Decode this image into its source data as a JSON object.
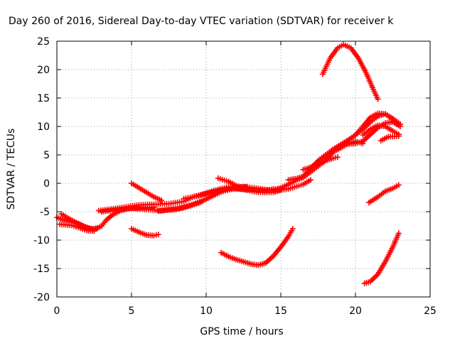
{
  "chart_data": {
    "type": "scatter",
    "title": "Day 260 of 2016, Sidereal Day-to-day VTEC variation (SDTVAR) for receiver k",
    "xlabel": "GPS time / hours",
    "ylabel": "SDTVAR / TECUs",
    "xlim": [
      0,
      25
    ],
    "ylim": [
      -20,
      25
    ],
    "xticks": [
      0,
      5,
      10,
      15,
      20,
      25
    ],
    "yticks": [
      -20,
      -15,
      -10,
      -5,
      0,
      5,
      10,
      15,
      20,
      25
    ],
    "grid": true,
    "legend": "none",
    "marker": "plus",
    "color": "#ff0000",
    "series": [
      {
        "points": [
          [
            0.0,
            -6.0
          ],
          [
            0.5,
            -6.5
          ],
          [
            1.0,
            -6.8
          ],
          [
            1.5,
            -7.2
          ],
          [
            2.0,
            -7.8
          ],
          [
            2.5,
            -8.2
          ],
          [
            3.0,
            -7.5
          ],
          [
            3.3,
            -6.5
          ],
          [
            3.7,
            -5.6
          ],
          [
            4.2,
            -4.9
          ],
          [
            4.8,
            -4.4
          ],
          [
            5.5,
            -4.3
          ],
          [
            6.5,
            -4.2
          ]
        ]
      },
      {
        "points": [
          [
            0.3,
            -5.4
          ],
          [
            0.8,
            -6.2
          ],
          [
            1.3,
            -6.9
          ],
          [
            1.8,
            -7.6
          ],
          [
            2.3,
            -8.0
          ],
          [
            2.7,
            -7.9
          ]
        ]
      },
      {
        "points": [
          [
            0.2,
            -7.2
          ],
          [
            1.0,
            -7.4
          ],
          [
            2.0,
            -8.3
          ],
          [
            2.5,
            -8.4
          ]
        ]
      },
      {
        "points": [
          [
            2.8,
            -4.8
          ],
          [
            3.5,
            -4.6
          ],
          [
            4.5,
            -4.2
          ],
          [
            5.5,
            -3.8
          ],
          [
            6.5,
            -3.7
          ],
          [
            7.5,
            -3.6
          ],
          [
            8.5,
            -3.2
          ],
          [
            9.2,
            -2.3
          ],
          [
            10.0,
            -1.8
          ],
          [
            11.0,
            -1.2
          ],
          [
            12.0,
            -1.0
          ],
          [
            13.0,
            -1.1
          ],
          [
            14.0,
            -1.3
          ],
          [
            14.5,
            -1.0
          ]
        ]
      },
      {
        "points": [
          [
            3.0,
            -5.0
          ],
          [
            4.0,
            -4.7
          ],
          [
            5.0,
            -4.4
          ],
          [
            6.0,
            -4.6
          ],
          [
            7.0,
            -4.8
          ],
          [
            8.0,
            -4.6
          ],
          [
            9.0,
            -3.8
          ],
          [
            10.0,
            -2.8
          ],
          [
            11.0,
            -1.5
          ],
          [
            12.0,
            -0.8
          ],
          [
            12.7,
            -0.6
          ]
        ]
      },
      {
        "points": [
          [
            5.0,
            0.0
          ],
          [
            5.5,
            -0.8
          ],
          [
            6.0,
            -1.6
          ],
          [
            6.5,
            -2.4
          ],
          [
            7.0,
            -3.0
          ]
        ]
      },
      {
        "points": [
          [
            5.0,
            -8.0
          ],
          [
            5.5,
            -8.6
          ],
          [
            6.0,
            -9.1
          ],
          [
            6.5,
            -9.2
          ],
          [
            6.8,
            -9.0
          ]
        ]
      },
      {
        "points": [
          [
            6.8,
            -4.9
          ],
          [
            7.5,
            -4.6
          ],
          [
            8.5,
            -4.3
          ],
          [
            9.5,
            -3.5
          ],
          [
            10.5,
            -2.0
          ],
          [
            11.5,
            -0.9
          ],
          [
            12.5,
            -0.6
          ],
          [
            13.5,
            -0.9
          ],
          [
            14.5,
            -1.3
          ],
          [
            15.5,
            -1.0
          ],
          [
            16.5,
            -0.2
          ],
          [
            17.0,
            0.6
          ]
        ]
      },
      {
        "points": [
          [
            8.5,
            -2.7
          ],
          [
            9.5,
            -2.2
          ],
          [
            10.5,
            -1.3
          ],
          [
            11.5,
            -0.6
          ],
          [
            12.5,
            -1.1
          ],
          [
            13.5,
            -1.6
          ],
          [
            14.5,
            -1.6
          ],
          [
            15.0,
            -1.2
          ]
        ]
      },
      {
        "points": [
          [
            10.8,
            0.9
          ],
          [
            11.5,
            0.3
          ],
          [
            12.0,
            -0.4
          ],
          [
            12.7,
            -1.0
          ]
        ]
      },
      {
        "points": [
          [
            11.0,
            -12.2
          ],
          [
            11.5,
            -12.9
          ],
          [
            12.0,
            -13.4
          ],
          [
            12.5,
            -13.8
          ],
          [
            13.0,
            -14.2
          ],
          [
            13.5,
            -14.4
          ],
          [
            14.0,
            -14.0
          ],
          [
            14.5,
            -12.8
          ],
          [
            15.0,
            -11.2
          ],
          [
            15.5,
            -9.4
          ],
          [
            15.8,
            -8.0
          ]
        ]
      },
      {
        "points": [
          [
            14.5,
            -1.1
          ],
          [
            15.0,
            -0.8
          ],
          [
            15.5,
            -0.2
          ],
          [
            16.0,
            0.5
          ],
          [
            16.5,
            1.0
          ],
          [
            17.0,
            2.0
          ],
          [
            17.5,
            3.0
          ],
          [
            18.0,
            4.0
          ],
          [
            18.5,
            5.5
          ],
          [
            19.0,
            6.2
          ],
          [
            19.5,
            7.0
          ],
          [
            20.0,
            7.4
          ],
          [
            20.5,
            7.0
          ]
        ]
      },
      {
        "points": [
          [
            15.5,
            0.6
          ],
          [
            16.0,
            0.8
          ],
          [
            16.5,
            1.2
          ],
          [
            17.0,
            2.5
          ],
          [
            17.5,
            4.0
          ],
          [
            18.0,
            5.0
          ],
          [
            18.5,
            6.0
          ],
          [
            19.0,
            6.8
          ],
          [
            19.5,
            7.6
          ],
          [
            20.0,
            8.5
          ],
          [
            20.5,
            9.5
          ],
          [
            21.0,
            10.8
          ],
          [
            21.5,
            11.8
          ],
          [
            22.0,
            12.2
          ],
          [
            22.5,
            11.4
          ],
          [
            23.0,
            10.4
          ]
        ]
      },
      {
        "points": [
          [
            16.5,
            2.4
          ],
          [
            17.0,
            2.8
          ],
          [
            17.5,
            3.3
          ],
          [
            18.0,
            4.0
          ],
          [
            18.5,
            4.4
          ],
          [
            18.8,
            4.6
          ]
        ]
      },
      {
        "points": [
          [
            17.0,
            2.8
          ],
          [
            17.5,
            3.8
          ],
          [
            18.0,
            4.8
          ],
          [
            18.5,
            5.6
          ],
          [
            19.0,
            6.5
          ],
          [
            19.5,
            7.5
          ],
          [
            20.0,
            8.5
          ],
          [
            20.5,
            10.0
          ],
          [
            21.0,
            11.6
          ],
          [
            21.5,
            12.3
          ],
          [
            22.0,
            12.2
          ],
          [
            22.5,
            11.2
          ],
          [
            22.9,
            10.2
          ]
        ]
      },
      {
        "points": [
          [
            17.8,
            19.2
          ],
          [
            18.3,
            22.0
          ],
          [
            18.8,
            23.8
          ],
          [
            19.2,
            24.4
          ],
          [
            19.7,
            23.8
          ],
          [
            20.2,
            22.0
          ],
          [
            20.7,
            19.5
          ],
          [
            21.2,
            16.5
          ],
          [
            21.5,
            14.8
          ]
        ]
      },
      {
        "points": [
          [
            19.5,
            6.9
          ],
          [
            20.0,
            7.0
          ],
          [
            20.5,
            7.4
          ],
          [
            21.0,
            8.6
          ],
          [
            21.5,
            9.8
          ],
          [
            22.0,
            10.6
          ],
          [
            22.5,
            10.8
          ],
          [
            23.0,
            10.0
          ]
        ]
      },
      {
        "points": [
          [
            20.5,
            8.5
          ],
          [
            21.0,
            9.5
          ],
          [
            21.5,
            10.2
          ],
          [
            22.0,
            10.0
          ],
          [
            22.5,
            9.2
          ],
          [
            22.9,
            8.6
          ]
        ]
      },
      {
        "points": [
          [
            20.6,
            -17.6
          ],
          [
            21.0,
            -17.3
          ],
          [
            21.5,
            -16.0
          ],
          [
            22.0,
            -13.8
          ],
          [
            22.5,
            -11.2
          ],
          [
            22.9,
            -8.8
          ]
        ]
      },
      {
        "points": [
          [
            20.9,
            -3.4
          ],
          [
            21.5,
            -2.4
          ],
          [
            22.0,
            -1.4
          ],
          [
            22.5,
            -0.9
          ],
          [
            22.9,
            -0.3
          ]
        ]
      },
      {
        "points": [
          [
            21.7,
            7.5
          ],
          [
            22.2,
            8.2
          ],
          [
            22.9,
            8.3
          ]
        ]
      }
    ]
  }
}
